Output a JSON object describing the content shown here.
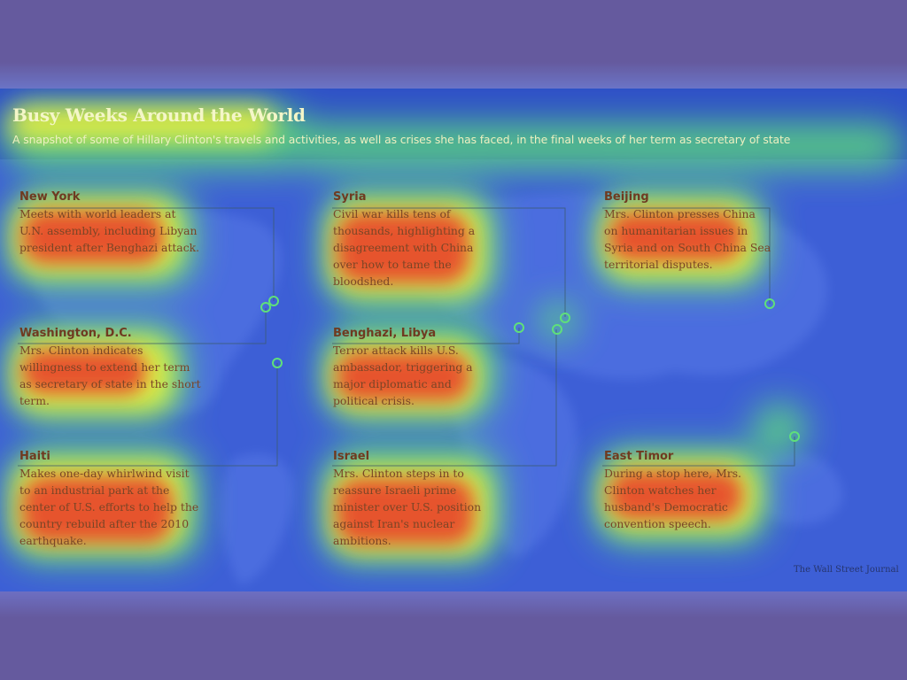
{
  "graphic": {
    "title": "Busy Weeks Around the World",
    "subtitle": "A snapshot of some of Hillary Clinton's travels and activities, as well as crises she has faced, in the final weeks of her term as secretary of state",
    "credit": "The Wall Street Journal"
  },
  "callouts": [
    {
      "place": "New York",
      "text": "Meets with world leaders at U.N. assembly, including Libyan president after Benghazi attack."
    },
    {
      "place": "Washington, D.C.",
      "text": "Mrs. Clinton indicates willingness to extend her term as secretary of state in the short term."
    },
    {
      "place": "Haiti",
      "text": "Makes one-day whirlwind visit to an industrial park at the center of U.S. efforts to help the country rebuild after the 2010 earthquake."
    },
    {
      "place": "Syria",
      "text": "Civil war kills tens of thousands, highlighting a disagreement with China over how to tame the bloodshed."
    },
    {
      "place": "Benghazi, Libya",
      "text": "Terror attack kills U.S. ambassador, triggering a major diplomatic and political crisis."
    },
    {
      "place": "Israel",
      "text": "Mrs. Clinton steps in to reassure Israeli prime minister over U.S. position against Iran's nuclear ambitions."
    },
    {
      "place": "Beijing",
      "text": "Mrs. Clinton presses China on humanitarian issues in Syria and on South China Sea territorial disputes."
    },
    {
      "place": "East Timor",
      "text": "During a stop here, Mrs. Clinton watches her husband's Democratic convention speech."
    }
  ],
  "colors": {
    "heat_low": "#3d5fd6",
    "heat_mid": "#5fe07a",
    "heat_high": "#e8402a",
    "marker": "#5fe07a"
  }
}
